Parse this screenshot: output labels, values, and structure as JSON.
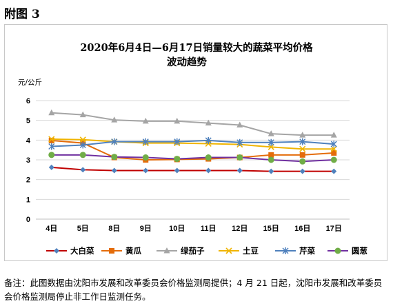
{
  "figure_label": "附图 3",
  "note": "备注：此图数据由沈阳市发展和改革委员会价格监测局提供；4 月 21 日起，沈阳市发展和改革委员会价格监测局停止非工作日监测任务。",
  "chart_data": {
    "type": "line",
    "title_lines": [
      "2020年6月4日—6月17日销量较大的蔬菜平均价格",
      "波动趋势"
    ],
    "ylabel": "元/公斤",
    "xlabel": "",
    "categories": [
      "4日",
      "5日",
      "8日",
      "9日",
      "10日",
      "11日",
      "12日",
      "15日",
      "16日",
      "17日"
    ],
    "ylim": [
      0,
      6
    ],
    "yticks": [
      "0",
      "1",
      "2",
      "3",
      "4",
      "5",
      "6"
    ],
    "grid": true,
    "legend_position": "bottom",
    "series": [
      {
        "name": "大白菜",
        "color": "#C00000",
        "marker": "diamond",
        "marker_color": "#4F81BD",
        "values": [
          2.62,
          2.5,
          2.46,
          2.46,
          2.46,
          2.46,
          2.46,
          2.42,
          2.42,
          2.42
        ]
      },
      {
        "name": "黄瓜",
        "color": "#E46C0A",
        "marker": "square",
        "marker_color": "#E46C0A",
        "values": [
          3.98,
          3.85,
          3.12,
          3.0,
          3.02,
          3.05,
          3.12,
          3.25,
          3.25,
          3.35
        ]
      },
      {
        "name": "绿茄子",
        "color": "#A5A5A5",
        "marker": "triangle",
        "marker_color": "#A5A5A5",
        "values": [
          5.38,
          5.28,
          5.02,
          4.96,
          4.96,
          4.86,
          4.76,
          4.32,
          4.25,
          4.25
        ]
      },
      {
        "name": "土豆",
        "color": "#F0B400",
        "marker": "x",
        "marker_color": "#F0B400",
        "values": [
          4.05,
          4.02,
          3.92,
          3.85,
          3.85,
          3.82,
          3.78,
          3.65,
          3.55,
          3.55
        ]
      },
      {
        "name": "芹菜",
        "color": "#4F81BD",
        "marker": "star",
        "marker_color": "#4F81BD",
        "values": [
          3.68,
          3.75,
          3.92,
          3.92,
          3.92,
          3.98,
          3.88,
          3.88,
          3.92,
          3.8
        ]
      },
      {
        "name": "圆葱",
        "color": "#7030A0",
        "marker": "circle",
        "marker_color": "#70AD47",
        "values": [
          3.25,
          3.25,
          3.15,
          3.12,
          3.05,
          3.12,
          3.12,
          3.0,
          2.92,
          3.0
        ]
      }
    ]
  }
}
